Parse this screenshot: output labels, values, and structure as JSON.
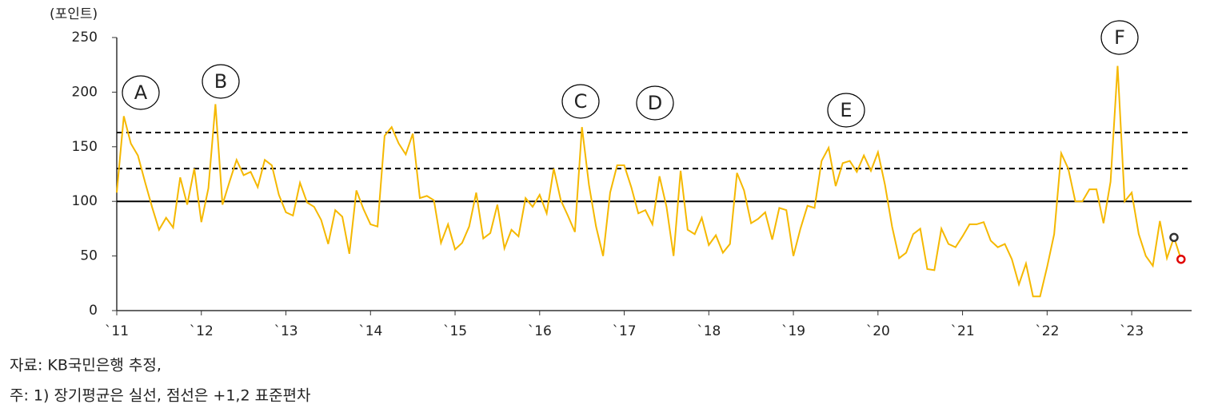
{
  "chart_data": {
    "type": "line",
    "ylabel": "(포인트)",
    "source": "자료: KB국민은행 추정,",
    "note": "주: 1) 장기평균은 실선, 점선은 +1,2 표준편차",
    "annotations": [
      "A",
      "B",
      "C",
      "D",
      "E",
      "F"
    ],
    "xlim": [
      0,
      152.5
    ],
    "xticks": [
      {
        "value": 0,
        "label": "`11"
      },
      {
        "value": 12,
        "label": "`12"
      },
      {
        "value": 24,
        "label": "`13"
      },
      {
        "value": 36,
        "label": "`14"
      },
      {
        "value": 48,
        "label": "`15"
      },
      {
        "value": 60,
        "label": "`16"
      },
      {
        "value": 72,
        "label": "`17"
      },
      {
        "value": 84,
        "label": "`18"
      },
      {
        "value": 96,
        "label": "`19"
      },
      {
        "value": 108,
        "label": "`20"
      },
      {
        "value": 120,
        "label": "`21"
      },
      {
        "value": 132,
        "label": "`22"
      },
      {
        "value": 144,
        "label": "`23"
      }
    ],
    "ylim": [
      0,
      250
    ],
    "yticks": [
      0,
      50,
      100,
      150,
      200,
      250
    ],
    "x": [
      0,
      1,
      2,
      3,
      4,
      5,
      6,
      7,
      8,
      9,
      10,
      11,
      12,
      13,
      14,
      15,
      16,
      17,
      18,
      19,
      20,
      21,
      22,
      23,
      24,
      25,
      26,
      27,
      28,
      29,
      30,
      31,
      32,
      33,
      34,
      35,
      36,
      37,
      38,
      39,
      40,
      41,
      42,
      43,
      44,
      45,
      46,
      47,
      48,
      49,
      50,
      51,
      52,
      53,
      54,
      55,
      56,
      57,
      58,
      59,
      60,
      61,
      62,
      63,
      64,
      65,
      66,
      67,
      68,
      69,
      70,
      71,
      72,
      73,
      74,
      75,
      76,
      77,
      78,
      79,
      80,
      81,
      82,
      83,
      84,
      85,
      86,
      87,
      88,
      89,
      90,
      91,
      92,
      93,
      94,
      95,
      96,
      97,
      98,
      99,
      100,
      101,
      102,
      103,
      104,
      105,
      106,
      107,
      108,
      109,
      110,
      111,
      112,
      113,
      114,
      115,
      116,
      117,
      118,
      119,
      120,
      121,
      122,
      123,
      124,
      125,
      126,
      127,
      128,
      129,
      130,
      131,
      132,
      133,
      134,
      135,
      136,
      137,
      138,
      139,
      140,
      141,
      142,
      143,
      144,
      145,
      146,
      147,
      148,
      149,
      150,
      151
    ],
    "series": [
      {
        "color": "#f5b800",
        "values": [
          108,
          178,
          153,
          142,
          118,
          95,
          74,
          85,
          76,
          122,
          97,
          130,
          81,
          112,
          189,
          97,
          118,
          138,
          124,
          127,
          113,
          138,
          133,
          106,
          90,
          87,
          117,
          99,
          95,
          83,
          61,
          92,
          86,
          52,
          110,
          93,
          79,
          77,
          160,
          168,
          153,
          143,
          162,
          103,
          105,
          101,
          62,
          79,
          56,
          62,
          77,
          108,
          66,
          71,
          97,
          57,
          74,
          68,
          103,
          95,
          106,
          89,
          130,
          101,
          87,
          72,
          168,
          115,
          77,
          50,
          108,
          133,
          133,
          113,
          89,
          92,
          79,
          123,
          95,
          50,
          128,
          74,
          70,
          85,
          60,
          69,
          53,
          61,
          126,
          110,
          80,
          84,
          90,
          65,
          94,
          92,
          50,
          75,
          96,
          94,
          137,
          149,
          114,
          135,
          137,
          127,
          142,
          128,
          145,
          115,
          77,
          48,
          53,
          70,
          75,
          38,
          37,
          75,
          61,
          58,
          68,
          79,
          79,
          81,
          64,
          58,
          61,
          47,
          24,
          43,
          13,
          13,
          40,
          70,
          144,
          130,
          100,
          100,
          111,
          111,
          80,
          118,
          224,
          100,
          108,
          70,
          50,
          41,
          82,
          48,
          67,
          47
        ]
      }
    ],
    "markers": [
      {
        "x": 150,
        "y": 67,
        "color": "#333333"
      },
      {
        "x": 151,
        "y": 47,
        "color": "#e00000"
      }
    ],
    "hlines": [
      {
        "value": 100,
        "style": "solid"
      },
      {
        "value": 130,
        "style": "dashed"
      },
      {
        "value": 163,
        "style": "dashed"
      }
    ]
  }
}
